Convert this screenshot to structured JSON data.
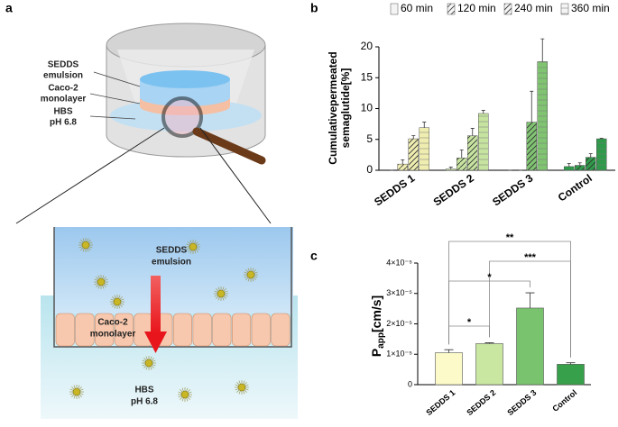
{
  "panels": [
    "a",
    "b",
    "c"
  ],
  "diagram": {
    "top_labels": [
      [
        "SEDDS",
        "emulsion"
      ],
      [
        "Caco-2",
        "monolayer"
      ],
      [
        "HBS",
        "pH 6.8"
      ]
    ],
    "bottom_labels": [
      [
        "SEDDS",
        "emulsion"
      ],
      [
        "Caco-2",
        "monolayer"
      ],
      [
        "HBS",
        "pH 6.8"
      ]
    ]
  },
  "chart_data": [
    {
      "type": "grouped-bar",
      "ylabel": [
        "Cumulativepermeated",
        "semaglutide[%]"
      ],
      "categories": [
        "SEDDS 1",
        "SEDDS 2",
        "SEDDS 3",
        "Control"
      ],
      "category_colors": [
        "#efedb0",
        "#c6e3a0",
        "#80c472",
        "#2f9a4a"
      ],
      "series": [
        {
          "name": "60 min",
          "pattern": "plain",
          "values": [
            0,
            0.2,
            0,
            0.6
          ],
          "errors": [
            0,
            0.3,
            0,
            0.5
          ]
        },
        {
          "name": "120 min",
          "pattern": "hatch",
          "values": [
            1.0,
            2.0,
            0,
            0.8
          ],
          "errors": [
            0.7,
            1.3,
            0,
            0.4
          ]
        },
        {
          "name": "240 min",
          "pattern": "dense-hatch",
          "values": [
            5.1,
            5.6,
            7.8,
            2.1
          ],
          "errors": [
            0.5,
            1.2,
            5.0,
            0.6
          ]
        },
        {
          "name": "360 min",
          "pattern": "lines",
          "values": [
            6.9,
            9.2,
            17.6,
            5.1
          ],
          "errors": [
            0.9,
            0.5,
            3.7,
            0.1
          ]
        }
      ],
      "ylim": [
        0,
        20
      ],
      "yticks": [
        0,
        5,
        10,
        15,
        20
      ]
    },
    {
      "type": "bar",
      "ylabel": [
        "P",
        "app",
        "[cm/s]"
      ],
      "categories": [
        "SEDDS 1",
        "SEDDS 2",
        "SEDDS 3",
        "Control"
      ],
      "colors": [
        "#fbfac8",
        "#c9e7a1",
        "#79c26e",
        "#37a04a"
      ],
      "values": [
        1.05e-05,
        1.35e-05,
        2.52e-05,
        6.7e-06
      ],
      "errors": [
        1e-06,
        3e-07,
        5e-06,
        5e-07
      ],
      "ylim": [
        0,
        4e-05
      ],
      "yticks": [
        0,
        {
          "value": 1e-05,
          "label": "1×10⁻⁵"
        },
        {
          "value": 2e-05,
          "label": "2×10⁻⁵"
        },
        {
          "value": 3e-05,
          "label": "3×10⁻⁵"
        },
        {
          "value": 4e-05,
          "label": "4×10⁻⁵"
        }
      ],
      "significance": [
        {
          "pair": [
            0,
            3
          ],
          "label": "**"
        },
        {
          "pair": [
            1,
            3
          ],
          "label": "***"
        },
        {
          "pair": [
            0,
            2
          ],
          "label": "*"
        },
        {
          "pair": [
            0,
            1
          ],
          "label": "*"
        }
      ]
    }
  ]
}
